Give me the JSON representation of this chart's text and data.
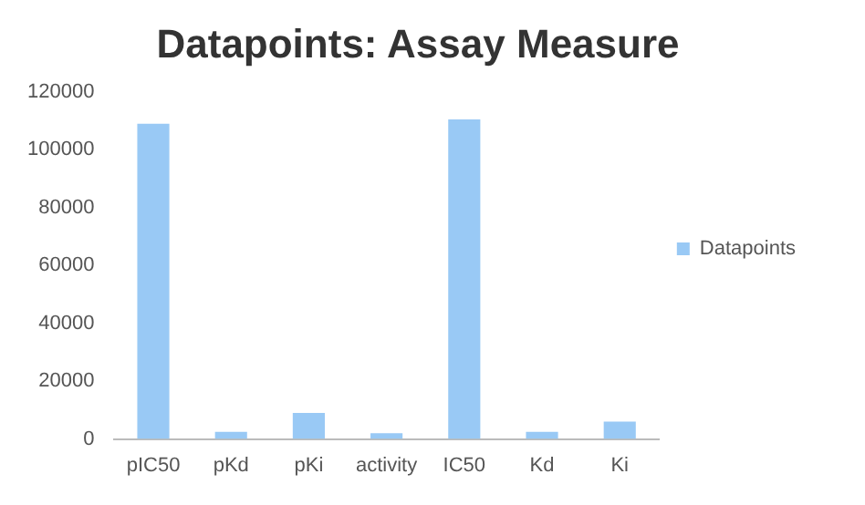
{
  "chart_data": {
    "type": "bar",
    "title": "Datapoints: Assay Measure",
    "categories": [
      "pIC50",
      "pKd",
      "pKi",
      "activity",
      "IC50",
      "Kd",
      "Ki"
    ],
    "series": [
      {
        "name": "Datapoints",
        "color": "#99c9f5",
        "values": [
          109000,
          2500,
          9000,
          2000,
          110500,
          2500,
          6000
        ]
      }
    ],
    "ylim": [
      0,
      120000
    ],
    "yticks": [
      0,
      20000,
      40000,
      60000,
      80000,
      100000,
      120000
    ],
    "grid": false,
    "legend": "right"
  }
}
